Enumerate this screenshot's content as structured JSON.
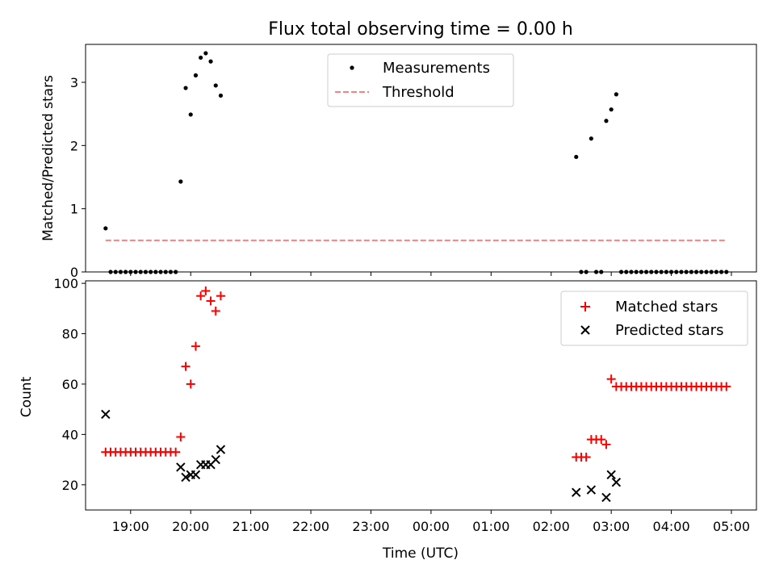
{
  "figure": {
    "title": "Flux total observing time = 0.00 h"
  },
  "chart_data": [
    {
      "type": "scatter",
      "title": "Flux total observing time = 0.00 h",
      "xlabel": "",
      "ylabel": "Matched/Predicted stars",
      "xlim": [
        "18:15",
        "05:25"
      ],
      "ylim": [
        0,
        3.6
      ],
      "yticks": [
        0,
        1,
        2,
        3
      ],
      "legend": {
        "placement": "upper center",
        "entries": [
          "Measurements",
          "Threshold"
        ]
      },
      "series": [
        {
          "name": "Measurements",
          "marker": "dot",
          "color": "#000000",
          "points": [
            [
              "18:35",
              0.69
            ],
            [
              "18:40",
              0
            ],
            [
              "18:45",
              0
            ],
            [
              "18:50",
              0
            ],
            [
              "18:55",
              0
            ],
            [
              "19:00",
              0
            ],
            [
              "19:05",
              0
            ],
            [
              "19:10",
              0
            ],
            [
              "19:15",
              0
            ],
            [
              "19:20",
              0
            ],
            [
              "19:25",
              0
            ],
            [
              "19:30",
              0
            ],
            [
              "19:35",
              0
            ],
            [
              "19:40",
              0
            ],
            [
              "19:45",
              0
            ],
            [
              "19:50",
              1.43
            ],
            [
              "19:55",
              2.91
            ],
            [
              "20:00",
              2.49
            ],
            [
              "20:05",
              3.11
            ],
            [
              "20:10",
              3.39
            ],
            [
              "20:15",
              3.46
            ],
            [
              "20:20",
              3.33
            ],
            [
              "20:25",
              2.95
            ],
            [
              "20:30",
              2.79
            ],
            [
              "02:25",
              1.82
            ],
            [
              "02:30",
              0
            ],
            [
              "02:35",
              0
            ],
            [
              "02:40",
              2.11
            ],
            [
              "02:45",
              0
            ],
            [
              "02:50",
              0
            ],
            [
              "02:55",
              2.39
            ],
            [
              "03:00",
              2.57
            ],
            [
              "03:05",
              2.81
            ],
            [
              "03:10",
              0
            ],
            [
              "03:15",
              0
            ],
            [
              "03:20",
              0
            ],
            [
              "03:25",
              0
            ],
            [
              "03:30",
              0
            ],
            [
              "03:35",
              0
            ],
            [
              "03:40",
              0
            ],
            [
              "03:45",
              0
            ],
            [
              "03:50",
              0
            ],
            [
              "03:55",
              0
            ],
            [
              "04:00",
              0
            ],
            [
              "04:05",
              0
            ],
            [
              "04:10",
              0
            ],
            [
              "04:15",
              0
            ],
            [
              "04:20",
              0
            ],
            [
              "04:25",
              0
            ],
            [
              "04:30",
              0
            ],
            [
              "04:35",
              0
            ],
            [
              "04:40",
              0
            ],
            [
              "04:45",
              0
            ],
            [
              "04:50",
              0
            ],
            [
              "04:55",
              0
            ]
          ]
        },
        {
          "name": "Threshold",
          "type": "line",
          "style": "dashed",
          "color": "#ff7f7f",
          "points": [
            [
              "18:35",
              0.5
            ],
            [
              "04:55",
              0.5
            ]
          ]
        }
      ]
    },
    {
      "type": "scatter",
      "title": "",
      "xlabel": "Time (UTC)",
      "ylabel": "Count",
      "xlim": [
        "18:15",
        "05:25"
      ],
      "ylim": [
        10,
        101
      ],
      "yticks": [
        20,
        40,
        60,
        80,
        100
      ],
      "xticks": [
        "19:00",
        "20:00",
        "21:00",
        "22:00",
        "23:00",
        "00:00",
        "01:00",
        "02:00",
        "03:00",
        "04:00",
        "05:00"
      ],
      "legend": {
        "placement": "upper right",
        "entries": [
          "Matched stars",
          "Predicted stars"
        ]
      },
      "series": [
        {
          "name": "Matched stars",
          "marker": "plus",
          "color": "#ff0000",
          "points": [
            [
              "18:35",
              33
            ],
            [
              "18:40",
              33
            ],
            [
              "18:45",
              33
            ],
            [
              "18:50",
              33
            ],
            [
              "18:55",
              33
            ],
            [
              "19:00",
              33
            ],
            [
              "19:05",
              33
            ],
            [
              "19:10",
              33
            ],
            [
              "19:15",
              33
            ],
            [
              "19:20",
              33
            ],
            [
              "19:25",
              33
            ],
            [
              "19:30",
              33
            ],
            [
              "19:35",
              33
            ],
            [
              "19:40",
              33
            ],
            [
              "19:45",
              33
            ],
            [
              "19:50",
              39
            ],
            [
              "19:55",
              67
            ],
            [
              "20:00",
              60
            ],
            [
              "20:05",
              75
            ],
            [
              "20:10",
              95
            ],
            [
              "20:15",
              97
            ],
            [
              "20:20",
              93
            ],
            [
              "20:25",
              89
            ],
            [
              "20:30",
              95
            ],
            [
              "02:25",
              31
            ],
            [
              "02:30",
              31
            ],
            [
              "02:35",
              31
            ],
            [
              "02:40",
              38
            ],
            [
              "02:45",
              38
            ],
            [
              "02:50",
              38
            ],
            [
              "02:55",
              36
            ],
            [
              "03:00",
              62
            ],
            [
              "03:05",
              59
            ],
            [
              "03:10",
              59
            ],
            [
              "03:15",
              59
            ],
            [
              "03:20",
              59
            ],
            [
              "03:25",
              59
            ],
            [
              "03:30",
              59
            ],
            [
              "03:35",
              59
            ],
            [
              "03:40",
              59
            ],
            [
              "03:45",
              59
            ],
            [
              "03:50",
              59
            ],
            [
              "03:55",
              59
            ],
            [
              "04:00",
              59
            ],
            [
              "04:05",
              59
            ],
            [
              "04:10",
              59
            ],
            [
              "04:15",
              59
            ],
            [
              "04:20",
              59
            ],
            [
              "04:25",
              59
            ],
            [
              "04:30",
              59
            ],
            [
              "04:35",
              59
            ],
            [
              "04:40",
              59
            ],
            [
              "04:45",
              59
            ],
            [
              "04:50",
              59
            ],
            [
              "04:55",
              59
            ]
          ]
        },
        {
          "name": "Predicted stars",
          "marker": "x",
          "color": "#000000",
          "points": [
            [
              "18:35",
              48
            ],
            [
              "19:50",
              27
            ],
            [
              "19:55",
              23
            ],
            [
              "20:00",
              24
            ],
            [
              "20:05",
              24
            ],
            [
              "20:10",
              28
            ],
            [
              "20:15",
              28
            ],
            [
              "20:20",
              28
            ],
            [
              "20:25",
              30
            ],
            [
              "20:30",
              34
            ],
            [
              "02:25",
              17
            ],
            [
              "02:40",
              18
            ],
            [
              "02:55",
              15
            ],
            [
              "03:00",
              24
            ],
            [
              "03:05",
              21
            ]
          ]
        }
      ]
    }
  ]
}
